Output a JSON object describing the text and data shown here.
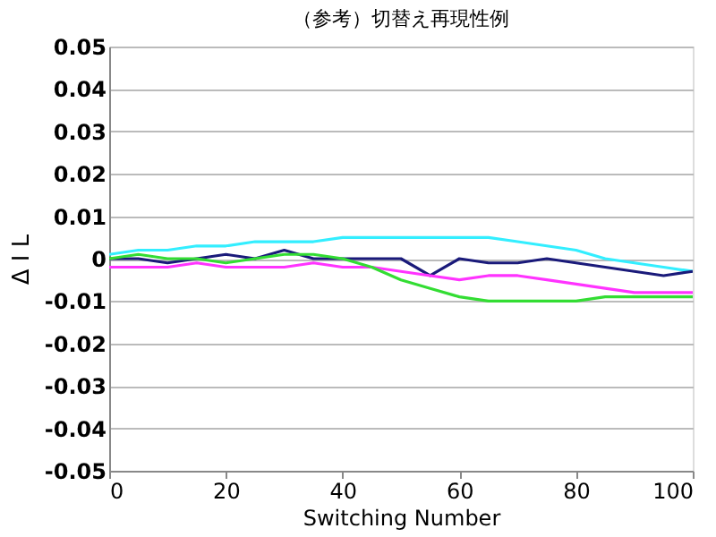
{
  "chart_data": {
    "type": "line",
    "title": "（参考）切替え再現性例",
    "xlabel": "Switching Number",
    "ylabel": "Δ I L",
    "x": [
      0,
      5,
      10,
      15,
      20,
      25,
      30,
      35,
      40,
      45,
      50,
      55,
      60,
      65,
      70,
      75,
      80,
      85,
      90,
      95,
      100
    ],
    "series": [
      {
        "color": "#33eeff",
        "values": [
          0.001,
          0.002,
          0.002,
          0.003,
          0.003,
          0.004,
          0.004,
          0.004,
          0.005,
          0.005,
          0.005,
          0.005,
          0.005,
          0.005,
          0.004,
          0.003,
          0.002,
          0.0,
          -0.001,
          -0.002,
          -0.003
        ]
      },
      {
        "color": "#1a1a7a",
        "values": [
          0.0,
          0.0,
          -0.001,
          0.0,
          0.001,
          0.0,
          0.002,
          0.0,
          0.0,
          0.0,
          0.0,
          -0.004,
          0.0,
          -0.001,
          -0.001,
          0.0,
          -0.001,
          -0.002,
          -0.003,
          -0.004,
          -0.003
        ]
      },
      {
        "color": "#ff33ff",
        "values": [
          -0.002,
          -0.002,
          -0.002,
          -0.001,
          -0.002,
          -0.002,
          -0.002,
          -0.001,
          -0.002,
          -0.002,
          -0.003,
          -0.004,
          -0.005,
          -0.004,
          -0.004,
          -0.005,
          -0.006,
          -0.007,
          -0.008,
          -0.008,
          -0.008
        ]
      },
      {
        "color": "#33dd33",
        "values": [
          0.0,
          0.001,
          0.0,
          0.0,
          -0.001,
          0.0,
          0.001,
          0.001,
          0.0,
          -0.002,
          -0.005,
          -0.007,
          -0.009,
          -0.01,
          -0.01,
          -0.01,
          -0.01,
          -0.009,
          -0.009,
          -0.009,
          -0.009
        ]
      }
    ],
    "xlim": [
      0,
      100
    ],
    "xticks": [
      0,
      20,
      40,
      60,
      80,
      100
    ],
    "ylim": [
      -0.05,
      0.05
    ],
    "yticks": [
      -0.05,
      -0.04,
      -0.03,
      -0.02,
      -0.01,
      0,
      0.01,
      0.02,
      0.03,
      0.04,
      0.05
    ],
    "grid": "y",
    "legend": false,
    "marker": "none",
    "line_style": "solid"
  }
}
